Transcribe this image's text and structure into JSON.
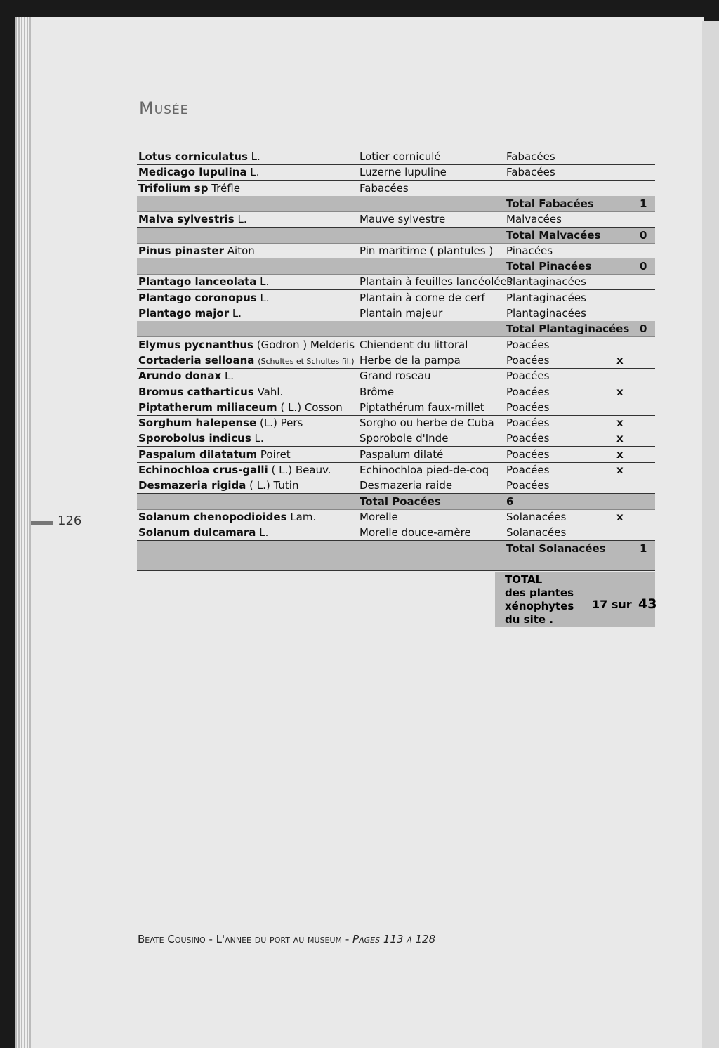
{
  "header": {
    "title": "Musée"
  },
  "page_number": "126",
  "table": {
    "rows": [
      {
        "name": "Lotus corniculatus",
        "author": "L.",
        "common": "Lotier corniculé",
        "family": "Fabacées"
      },
      {
        "name": "Medicago lupulina",
        "author": "L.",
        "common": "Luzerne lupuline",
        "family": "Fabacées"
      },
      {
        "name": "Trifolium sp",
        "author": "Tréfle",
        "common": "Fabacées"
      },
      {
        "total": "Total Fabacées",
        "count": "1"
      },
      {
        "name": "Malva sylvestris",
        "author": "L.",
        "common": "Mauve sylvestre",
        "family": "Malvacées"
      },
      {
        "total": "Total Malvacées",
        "count": "0"
      },
      {
        "name": "Pinus pinaster",
        "author": "Aiton",
        "common": "Pin maritime ( plantules )",
        "family": "Pinacées"
      },
      {
        "total": "Total Pinacées",
        "count": "0"
      },
      {
        "name": "Plantago lanceolata",
        "author": "L.",
        "common": "Plantain à feuilles lancéolées",
        "family": "Plantaginacées"
      },
      {
        "name": "Plantago coronopus",
        "author": "L.",
        "common": "Plantain à corne de cerf",
        "family": "Plantaginacées"
      },
      {
        "name": "Plantago major",
        "author": "L.",
        "common": "Plantain majeur",
        "family": "Plantaginacées"
      },
      {
        "total": "Total Plantaginacées",
        "count": "0"
      },
      {
        "name": "Elymus pycnanthus",
        "author": "(Godron ) Melderis",
        "common": "Chiendent du littoral",
        "family": "Poacées"
      },
      {
        "name": "Cortaderia selloana",
        "author": "(Schultes et Schultes fil.)",
        "common": "Herbe de la pampa",
        "family": "Poacées",
        "mark": "x"
      },
      {
        "name": "Arundo donax",
        "author": "L.",
        "common": "Grand roseau",
        "family": "Poacées"
      },
      {
        "name": "Bromus catharticus",
        "author": "Vahl.",
        "common": "Brôme",
        "family": "Poacées",
        "mark": "x"
      },
      {
        "name": "Piptatherum miliaceum",
        "author": "( L.) Cosson",
        "common": "Piptathérum faux-millet",
        "family": "Poacées"
      },
      {
        "name": "Sorghum halepense",
        "author": "(L.) Pers",
        "common": "Sorgho ou herbe de Cuba",
        "family": "Poacées",
        "mark": "x"
      },
      {
        "name": "Sporobolus indicus",
        "author": "L.",
        "common": "Sporobole d'Inde",
        "family": "Poacées",
        "mark": "x"
      },
      {
        "name": "Paspalum dilatatum",
        "author": "Poiret",
        "common": "Paspalum dilaté",
        "family": "Poacées",
        "mark": "x"
      },
      {
        "name": "Echinochloa crus-galli",
        "author": "( L.) Beauv.",
        "common": "Echinochloa pied-de-coq",
        "family": "Poacées",
        "mark": "x"
      },
      {
        "name": "Desmazeria rigida",
        "author": "( L.) Tutin",
        "common": "Desmazeria raide",
        "family": "Poacées"
      },
      {
        "subtotal": "Total Poacées",
        "subcount": "6"
      },
      {
        "name": "Solanum chenopodioides",
        "author": "Lam.",
        "common": "Morelle",
        "family": "Solanacées",
        "mark": "x"
      },
      {
        "name": "Solanum dulcamara",
        "author": "L.",
        "common": "Morelle douce-amère",
        "family": "Solanacées"
      },
      {
        "total": "Total Solanacées",
        "count": "1"
      }
    ]
  },
  "summary": {
    "lines": [
      "TOTAL",
      "des plantes",
      "xénophytes",
      "du site ."
    ],
    "count": "17 sur",
    "of": "43"
  },
  "footer": {
    "author": "Beate Cousino",
    "title": "L'année du port au museum",
    "pages": "Pages 113 à 128",
    "separator": "-"
  }
}
